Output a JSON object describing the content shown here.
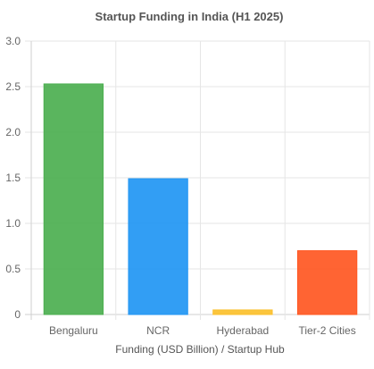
{
  "chart_data": {
    "type": "bar",
    "title": "Startup Funding in India (H1 2025)",
    "xlabel": "Funding (USD Billion) / Startup Hub",
    "ylabel": "",
    "categories": [
      "Bengaluru",
      "NCR",
      "Hyderabad",
      "Tier-2 Cities"
    ],
    "values": [
      2.53,
      1.49,
      0.05,
      0.7
    ],
    "colors": [
      "#4CAF50",
      "#2196F3",
      "#FBC02D",
      "#FF5722"
    ],
    "ylim": [
      0,
      3.0
    ],
    "yticks": [
      "0",
      "0.5",
      "1.0",
      "1.5",
      "2.0",
      "2.5",
      "3.0"
    ],
    "grid": true,
    "legend": "none"
  }
}
